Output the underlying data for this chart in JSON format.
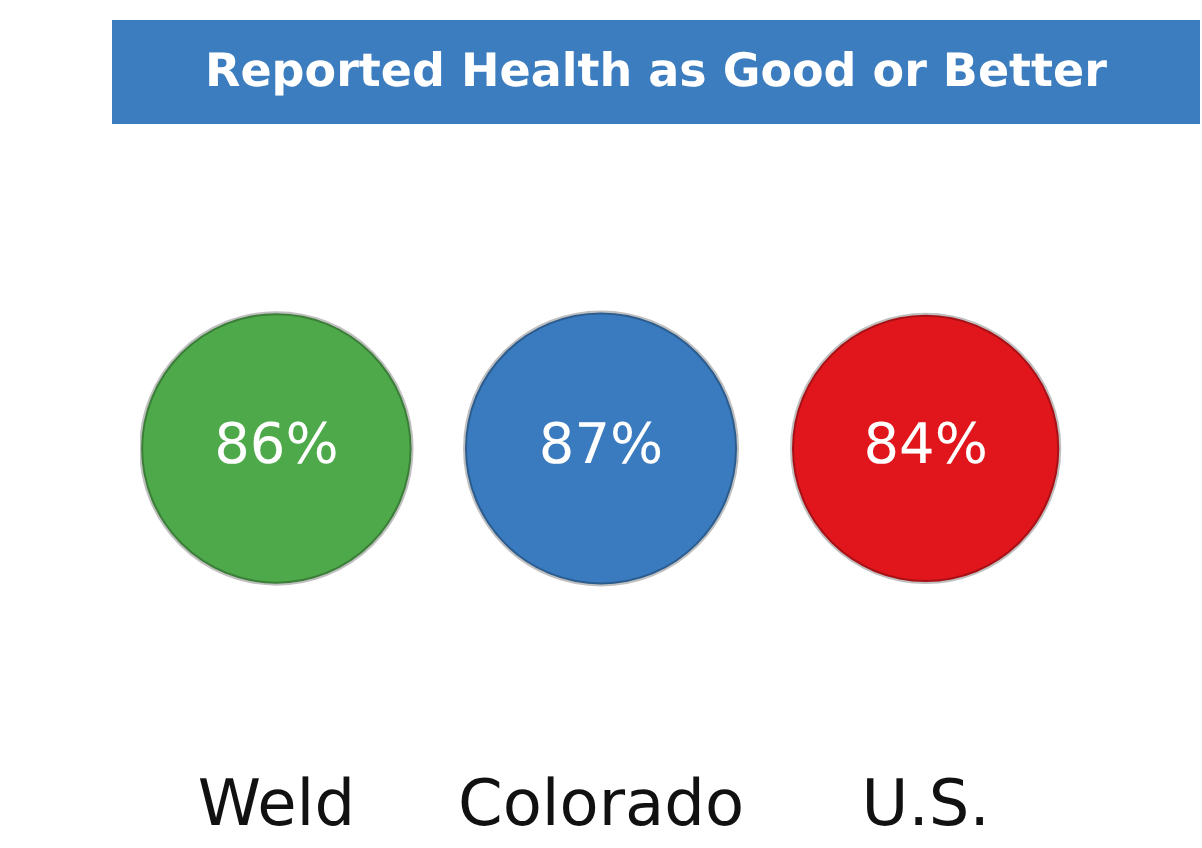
{
  "chart_data": {
    "type": "other",
    "title": "Reported Health as Good or Better",
    "categories": [
      "Weld",
      "Colorado",
      "U.S."
    ],
    "values": [
      86,
      87,
      84
    ],
    "value_labels": [
      "86%",
      "87%",
      "84%"
    ],
    "colors": [
      "#4ea94a",
      "#3a7bbf",
      "#e0161c"
    ]
  }
}
